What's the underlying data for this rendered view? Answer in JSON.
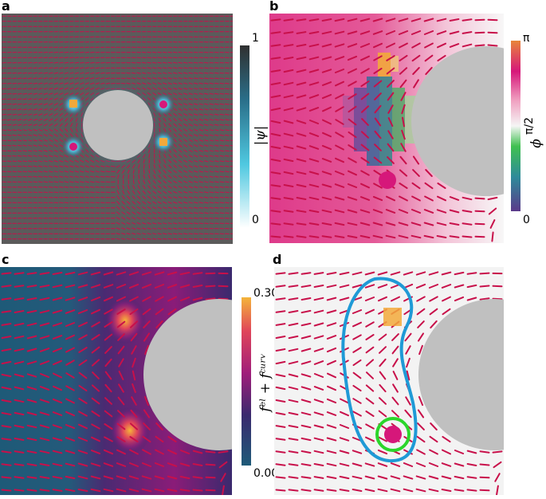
{
  "panels": {
    "a": {
      "letter": "a",
      "colorbar": {
        "label": "|ψ|",
        "ticks": [
          "1",
          "0"
        ]
      }
    },
    "b": {
      "letter": "b",
      "colorbar": {
        "label": "ϕ",
        "ticks": [
          "π",
          "π/2",
          "0"
        ]
      }
    },
    "c": {
      "letter": "c",
      "colorbar": {
        "label": "fᵉˡ + fᶜᵘʳᵛ",
        "ticks": [
          "0.30",
          "0.00"
        ]
      }
    },
    "d": {
      "letter": "d"
    }
  },
  "colors": {
    "director": "#c8104a",
    "inclusion": "#c0c0c0",
    "defect_plus": "#f2a93b",
    "defect_minus": "#d6177a",
    "loop": "#1f9ad6",
    "circle": "#2bd62b",
    "panel_a_bg": "#5b5b5b",
    "panel_c_bg": "#1e5a78",
    "panel_d_bg": "#f3f3f3"
  }
}
